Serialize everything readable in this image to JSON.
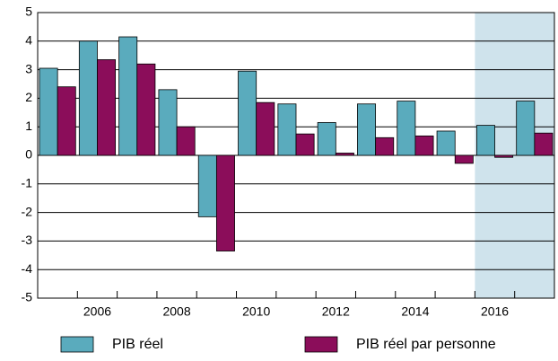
{
  "chart_data": {
    "type": "bar",
    "categories": [
      null,
      "2006",
      null,
      "2008",
      null,
      "2010",
      null,
      "2012",
      null,
      "2014",
      null,
      "2016",
      null
    ],
    "series": [
      {
        "name": "PIB réel",
        "color": "#5aabbd",
        "values": [
          3.05,
          4.0,
          4.15,
          2.3,
          -2.15,
          2.95,
          1.8,
          1.15,
          1.8,
          1.9,
          0.85,
          1.05,
          1.9
        ]
      },
      {
        "name": "PIB réel par personne",
        "color": "#8b0d5a",
        "values": [
          2.4,
          3.35,
          3.2,
          1.0,
          -3.35,
          1.85,
          0.75,
          0.08,
          0.62,
          0.68,
          -0.28,
          -0.07,
          0.78
        ]
      }
    ],
    "ylim": [
      -5,
      5
    ],
    "yticks": [
      -5,
      -4,
      -3,
      -2,
      -1,
      0,
      1,
      2,
      3,
      4,
      5
    ],
    "grid": true
  }
}
